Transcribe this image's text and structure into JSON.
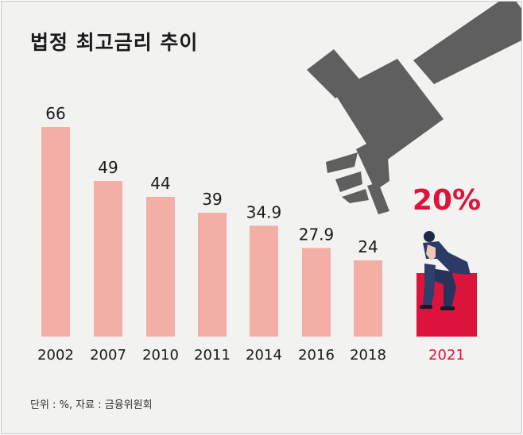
{
  "title": "법정 최고금리 추이",
  "source_note": "단위 : %, 자료 : 금융위원회",
  "colors": {
    "bar": "#f3aea6",
    "highlight": "#dc143c",
    "hammer": "#5f5f5f",
    "background": "#f2f2f0"
  },
  "chart_data": {
    "type": "bar",
    "categories": [
      "2002",
      "2007",
      "2010",
      "2011",
      "2014",
      "2016",
      "2018",
      "2021"
    ],
    "values": [
      66,
      49,
      44,
      39,
      34.9,
      27.9,
      24,
      20
    ],
    "value_labels": [
      "66",
      "49",
      "44",
      "39",
      "34.9",
      "27.9",
      "24",
      "20%"
    ],
    "highlight_category": "2021",
    "unit": "%",
    "ylim": [
      0,
      70
    ],
    "grid": false,
    "legend": "none"
  },
  "illustration": {
    "hammer_icon": "gavel-icon",
    "person_icon": "distressed-person-icon"
  }
}
